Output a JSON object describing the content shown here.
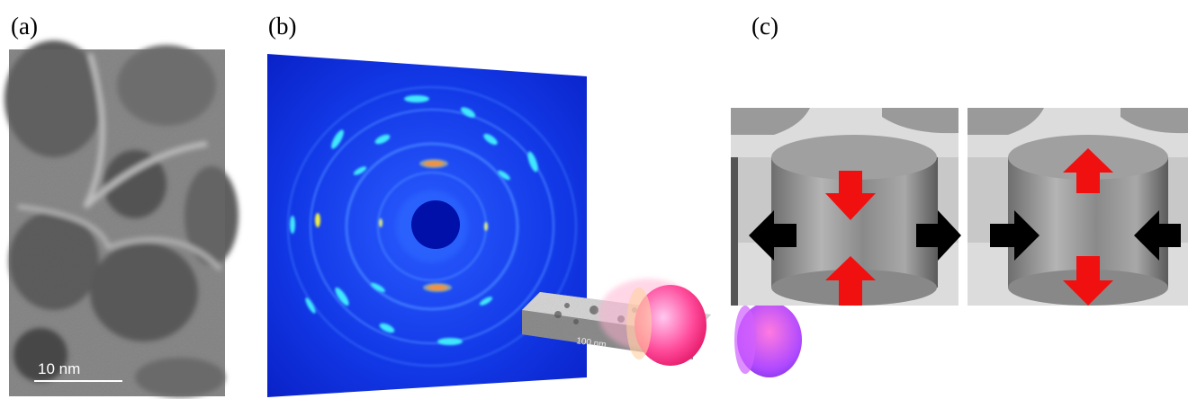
{
  "panels": [
    {
      "label": "(a)",
      "scale_bar": "10 nm"
    },
    {
      "label": "(b)",
      "scale_bar": "100 nm"
    },
    {
      "label": "(c)"
    }
  ]
}
